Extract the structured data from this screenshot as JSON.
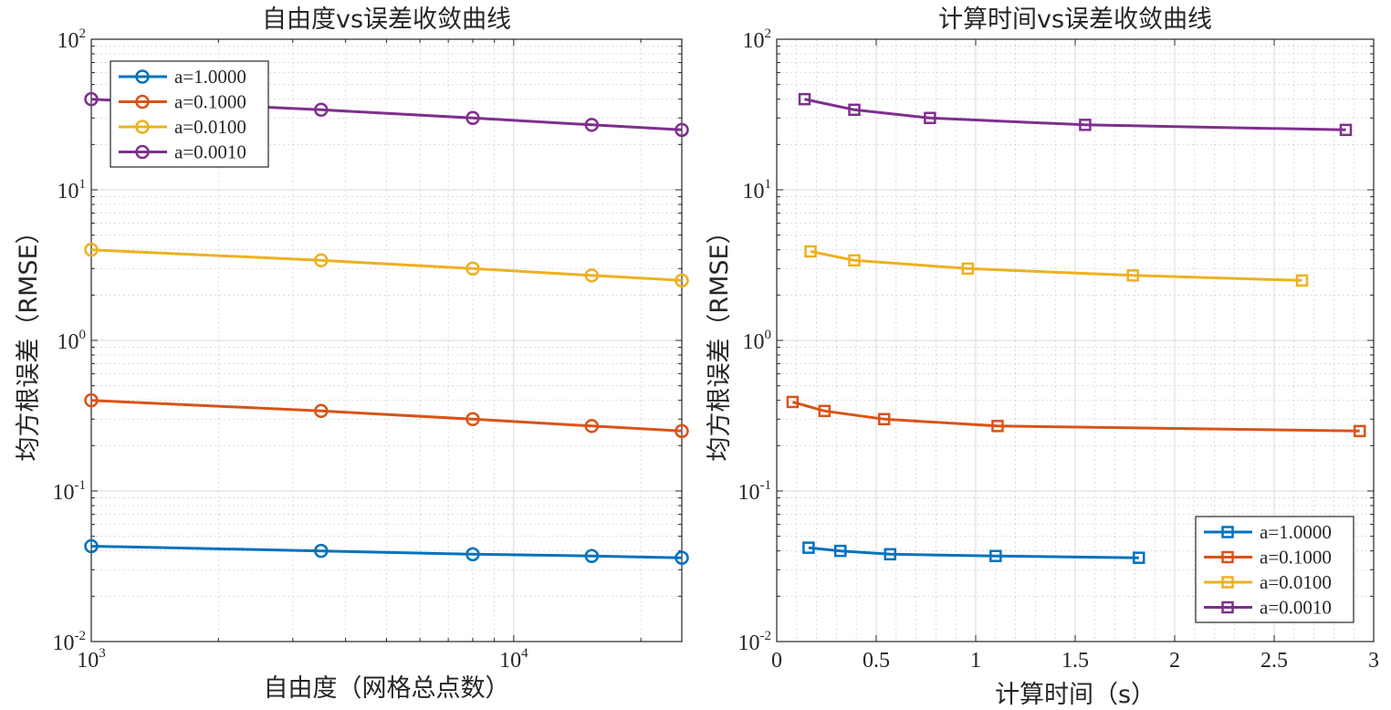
{
  "chart_data": [
    {
      "type": "line",
      "title": "自由度vs误差收敛曲线",
      "xlabel": "自由度（网格总点数）",
      "ylabel": "均方根误差（RMSE）",
      "xscale": "log",
      "yscale": "log",
      "xlim": [
        1000,
        25000
      ],
      "ylim": [
        0.01,
        100
      ],
      "grid": true,
      "marker": "circle",
      "legend_location": "top-left",
      "x_ticks": [
        {
          "base": "10",
          "exp": "3"
        },
        {
          "base": "10",
          "exp": "4"
        }
      ],
      "y_ticks": [
        {
          "base": "10",
          "exp": "2"
        },
        {
          "base": "10",
          "exp": "1"
        },
        {
          "base": "10",
          "exp": "0"
        },
        {
          "base": "10",
          "exp": "-1"
        },
        {
          "base": "10",
          "exp": "-2"
        }
      ],
      "series": [
        {
          "name": "a=1.0000",
          "color": "#0072BD",
          "x": [
            1000,
            3500,
            8000,
            15300,
            25000
          ],
          "y": [
            0.043,
            0.04,
            0.038,
            0.037,
            0.036
          ]
        },
        {
          "name": "a=0.1000",
          "color": "#D95319",
          "x": [
            1000,
            3500,
            8000,
            15300,
            25000
          ],
          "y": [
            0.4,
            0.34,
            0.3,
            0.27,
            0.25
          ]
        },
        {
          "name": "a=0.0100",
          "color": "#EDB120",
          "x": [
            1000,
            3500,
            8000,
            15300,
            25000
          ],
          "y": [
            4.0,
            3.4,
            3.0,
            2.7,
            2.5
          ]
        },
        {
          "name": "a=0.0010",
          "color": "#7E2F8E",
          "x": [
            1000,
            3500,
            8000,
            15300,
            25000
          ],
          "y": [
            40,
            34,
            30,
            27,
            25
          ]
        }
      ]
    },
    {
      "type": "line",
      "title": "计算时间vs误差收敛曲线",
      "xlabel": "计算时间（s）",
      "ylabel": "均方根误差（RMSE）",
      "xscale": "linear",
      "yscale": "log",
      "xlim": [
        0,
        3
      ],
      "ylim": [
        0.01,
        100
      ],
      "grid": true,
      "marker": "square",
      "legend_location": "bottom-right",
      "x_ticks": [
        {
          "value": 0,
          "label": "0"
        },
        {
          "value": 0.5,
          "label": "0.5"
        },
        {
          "value": 1,
          "label": "1"
        },
        {
          "value": 1.5,
          "label": "1.5"
        },
        {
          "value": 2,
          "label": "2"
        },
        {
          "value": 2.5,
          "label": "2.5"
        },
        {
          "value": 3,
          "label": "3"
        }
      ],
      "y_ticks": [
        {
          "base": "10",
          "exp": "2"
        },
        {
          "base": "10",
          "exp": "1"
        },
        {
          "base": "10",
          "exp": "0"
        },
        {
          "base": "10",
          "exp": "-1"
        },
        {
          "base": "10",
          "exp": "-2"
        }
      ],
      "series": [
        {
          "name": "a=1.0000",
          "color": "#0072BD",
          "x": [
            0.16,
            0.32,
            0.57,
            1.1,
            1.82
          ],
          "y": [
            0.042,
            0.04,
            0.038,
            0.037,
            0.036
          ]
        },
        {
          "name": "a=0.1000",
          "color": "#D95319",
          "x": [
            0.08,
            0.24,
            0.54,
            1.11,
            2.93
          ],
          "y": [
            0.39,
            0.34,
            0.3,
            0.27,
            0.25
          ]
        },
        {
          "name": "a=0.0100",
          "color": "#EDB120",
          "x": [
            0.17,
            0.39,
            0.96,
            1.79,
            2.64
          ],
          "y": [
            3.9,
            3.4,
            3.0,
            2.7,
            2.5
          ]
        },
        {
          "name": "a=0.0010",
          "color": "#7E2F8E",
          "x": [
            0.14,
            0.39,
            0.77,
            1.55,
            2.86
          ],
          "y": [
            40,
            34,
            30,
            27,
            25
          ]
        }
      ]
    }
  ]
}
